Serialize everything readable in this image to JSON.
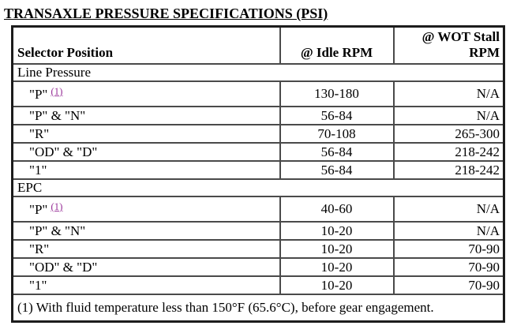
{
  "title": "TRANSAXLE PRESSURE SPECIFICATIONS (PSI)",
  "colors": {
    "footnote_link": "#993399",
    "text": "#000000",
    "background": "#ffffff",
    "table_border": "#1c1c1c"
  },
  "table": {
    "headers": {
      "selector": "Selector Position",
      "idle": "@ Idle RPM",
      "wot": "@ WOT Stall RPM"
    },
    "sections": [
      {
        "label": "Line Pressure",
        "rows": [
          {
            "selector": "\"P\"",
            "footnote_ref": "(1)",
            "idle": "130-180",
            "wot": "N/A"
          },
          {
            "selector": "\"P\" & \"N\"",
            "idle": "56-84",
            "wot": "N/A"
          },
          {
            "selector": "\"R\"",
            "idle": "70-108",
            "wot": "265-300"
          },
          {
            "selector": "\"OD\" & \"D\"",
            "idle": "56-84",
            "wot": "218-242"
          },
          {
            "selector": "\"1\"",
            "idle": "56-84",
            "wot": "218-242"
          }
        ]
      },
      {
        "label": "EPC",
        "rows": [
          {
            "selector": "\"P\"",
            "footnote_ref": "(1)",
            "idle": "40-60",
            "wot": "N/A"
          },
          {
            "selector": "\"P\" & \"N\"",
            "idle": "10-20",
            "wot": "N/A"
          },
          {
            "selector": "\"R\"",
            "idle": "10-20",
            "wot": "70-90"
          },
          {
            "selector": "\"OD\" & \"D\"",
            "idle": "10-20",
            "wot": "70-90"
          },
          {
            "selector": "\"1\"",
            "idle": "10-20",
            "wot": "70-90"
          }
        ]
      }
    ],
    "footnote": "(1) With fluid temperature less than 150°F (65.6°C), before gear engagement."
  }
}
